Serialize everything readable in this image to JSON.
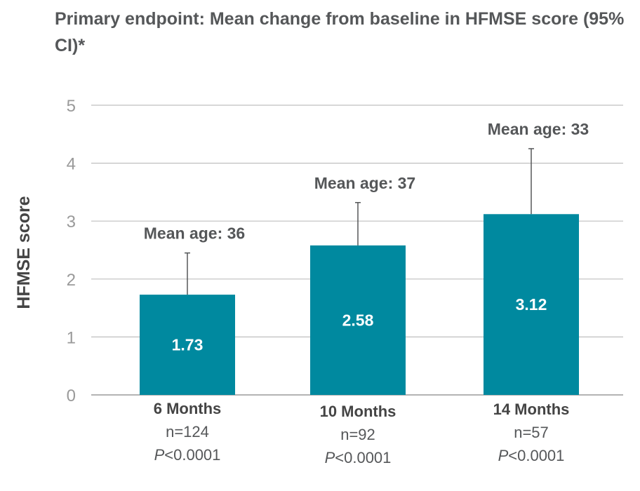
{
  "title": "Primary endpoint: Mean change from baseline in HFMSE score (95% CI)*",
  "colors": {
    "bar": "#00899f",
    "grid": "#bfbfbf",
    "error": "#555759"
  },
  "chart_data": {
    "type": "bar",
    "title": "Primary endpoint: Mean change from baseline in HFMSE score (95% CI)*",
    "ylabel": "HFMSE score",
    "xlabel": "",
    "ylim": [
      0,
      5
    ],
    "yticks": [
      "0",
      "1",
      "2",
      "3",
      "4",
      "5"
    ],
    "grid": true,
    "categories": [
      "6 Months",
      "10 Months",
      "14 Months"
    ],
    "values": [
      1.73,
      2.58,
      3.12
    ],
    "value_labels": [
      "1.73",
      "2.58",
      "3.12"
    ],
    "ci_upper": [
      2.45,
      3.32,
      4.25
    ],
    "annotations": [
      "Mean age: 36",
      "Mean age: 37",
      "Mean age: 33"
    ],
    "n_labels": [
      "n=124",
      "n=92",
      "n=57"
    ],
    "p_prefix": "P",
    "p_labels": [
      "<0.0001",
      "<0.0001",
      "<0.0001"
    ]
  }
}
